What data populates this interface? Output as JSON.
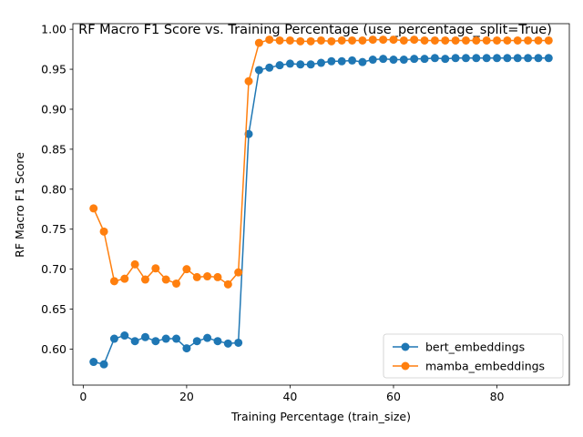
{
  "chart_data": {
    "type": "line",
    "title": "RF Macro F1 Score vs. Training Percentage (use_percentage_split=True)",
    "xlabel": "Training Percentage (train_size)",
    "ylabel": "RF Macro F1 Score",
    "xlim": [
      -2,
      94
    ],
    "ylim": [
      0.555,
      1.007
    ],
    "xticks": [
      0,
      20,
      40,
      60,
      80
    ],
    "xtick_labels": [
      "0",
      "20",
      "40",
      "60",
      "80"
    ],
    "yticks": [
      0.6,
      0.65,
      0.7,
      0.75,
      0.8,
      0.85,
      0.9,
      0.95,
      1.0
    ],
    "ytick_labels": [
      "0.60",
      "0.65",
      "0.70",
      "0.75",
      "0.80",
      "0.85",
      "0.90",
      "0.95",
      "1.00"
    ],
    "grid": false,
    "legend_position": "lower-right",
    "x": [
      2,
      4,
      6,
      8,
      10,
      12,
      14,
      16,
      18,
      20,
      22,
      24,
      26,
      28,
      30,
      32,
      34,
      36,
      38,
      40,
      42,
      44,
      46,
      48,
      50,
      52,
      54,
      56,
      58,
      60,
      62,
      64,
      66,
      68,
      70,
      72,
      74,
      76,
      78,
      80,
      82,
      84,
      86,
      88,
      90
    ],
    "series": [
      {
        "name": "bert_embeddings",
        "color": "#1f77b4",
        "marker": "circle",
        "values": [
          0.584,
          0.581,
          0.613,
          0.617,
          0.61,
          0.615,
          0.61,
          0.613,
          0.613,
          0.601,
          0.61,
          0.614,
          0.61,
          0.607,
          0.608,
          0.869,
          0.949,
          0.952,
          0.955,
          0.957,
          0.956,
          0.956,
          0.958,
          0.96,
          0.96,
          0.961,
          0.959,
          0.962,
          0.963,
          0.962,
          0.962,
          0.963,
          0.963,
          0.964,
          0.963,
          0.964,
          0.964,
          0.964,
          0.964,
          0.964,
          0.964,
          0.964,
          0.964,
          0.964,
          0.964
        ]
      },
      {
        "name": "mamba_embeddings",
        "color": "#ff7f0e",
        "marker": "circle",
        "values": [
          0.776,
          0.747,
          0.685,
          0.688,
          0.706,
          0.687,
          0.701,
          0.687,
          0.682,
          0.7,
          0.69,
          0.691,
          0.69,
          0.681,
          0.696,
          0.935,
          0.983,
          0.987,
          0.986,
          0.986,
          0.985,
          0.985,
          0.986,
          0.985,
          0.986,
          0.986,
          0.986,
          0.987,
          0.987,
          0.987,
          0.986,
          0.987,
          0.986,
          0.986,
          0.986,
          0.986,
          0.986,
          0.986,
          0.986,
          0.986,
          0.986,
          0.986,
          0.986,
          0.986,
          0.986
        ]
      }
    ]
  }
}
